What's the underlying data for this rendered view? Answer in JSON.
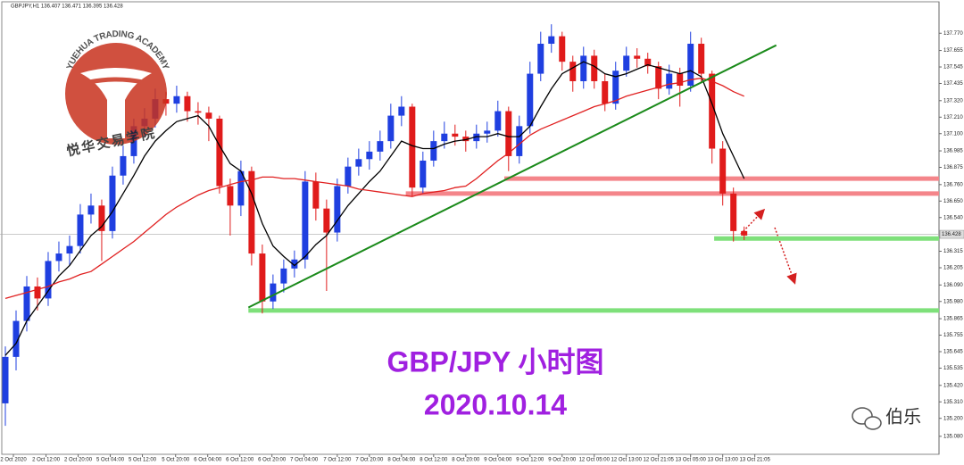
{
  "chart_data": {
    "type": "candlestick",
    "header": "GBPJPY,H1  136.407 136.471 136.395 136.428",
    "title": "GBP/JPY 小时图",
    "subtitle": "2020.10.14",
    "watermark": "YUEHUA TRADING ACADEMY",
    "watermark_cn": "悦华交易学院",
    "signature": "伯乐",
    "up_color": "#1f3fe0",
    "down_color": "#e01b1b",
    "xlim": [
      -0.5,
      87.2
    ],
    "ylim": [
      134.96,
      137.98
    ],
    "ohlc": [
      [
        135.3,
        135.68,
        135.15,
        135.61
      ],
      [
        135.61,
        135.92,
        135.52,
        135.85
      ],
      [
        135.85,
        136.15,
        135.78,
        136.08
      ],
      [
        136.08,
        136.14,
        135.92,
        136.0
      ],
      [
        136.0,
        136.31,
        135.95,
        136.25
      ],
      [
        136.25,
        136.38,
        136.18,
        136.3
      ],
      [
        136.3,
        136.42,
        136.22,
        136.35
      ],
      [
        136.35,
        136.63,
        136.3,
        136.56
      ],
      [
        136.56,
        136.7,
        136.5,
        136.62
      ],
      [
        136.62,
        136.66,
        136.25,
        136.45
      ],
      [
        136.45,
        136.88,
        136.4,
        136.82
      ],
      [
        136.82,
        137.02,
        136.76,
        136.95
      ],
      [
        136.95,
        137.2,
        136.9,
        137.15
      ],
      [
        137.15,
        137.27,
        137.08,
        137.2
      ],
      [
        137.2,
        137.4,
        137.14,
        137.33
      ],
      [
        137.33,
        137.38,
        137.22,
        137.3
      ],
      [
        137.3,
        137.42,
        137.24,
        137.35
      ],
      [
        137.35,
        137.38,
        137.18,
        137.25
      ],
      [
        137.25,
        137.31,
        137.16,
        137.24
      ],
      [
        137.24,
        137.28,
        137.05,
        137.2
      ],
      [
        137.2,
        137.22,
        136.7,
        136.75
      ],
      [
        136.75,
        136.8,
        136.42,
        136.62
      ],
      [
        136.62,
        136.92,
        136.55,
        136.85
      ],
      [
        136.85,
        136.88,
        136.22,
        136.3
      ],
      [
        136.3,
        136.36,
        135.9,
        135.98
      ],
      [
        135.98,
        136.16,
        135.93,
        136.1
      ],
      [
        136.1,
        136.26,
        136.04,
        136.2
      ],
      [
        136.2,
        136.32,
        136.14,
        136.26
      ],
      [
        136.26,
        136.85,
        136.2,
        136.78
      ],
      [
        136.78,
        136.84,
        136.52,
        136.6
      ],
      [
        136.6,
        136.66,
        136.05,
        136.44
      ],
      [
        136.44,
        136.8,
        136.38,
        136.75
      ],
      [
        136.75,
        136.94,
        136.7,
        136.88
      ],
      [
        136.88,
        137.0,
        136.82,
        136.93
      ],
      [
        136.93,
        137.05,
        136.86,
        136.98
      ],
      [
        136.98,
        137.12,
        136.92,
        137.05
      ],
      [
        137.05,
        137.3,
        137.0,
        137.22
      ],
      [
        137.22,
        137.35,
        137.15,
        137.28
      ],
      [
        137.28,
        137.3,
        136.68,
        136.74
      ],
      [
        136.74,
        136.98,
        136.7,
        136.92
      ],
      [
        136.92,
        137.12,
        136.88,
        137.05
      ],
      [
        137.05,
        137.18,
        137.0,
        137.1
      ],
      [
        137.1,
        137.16,
        137.02,
        137.08
      ],
      [
        137.08,
        137.12,
        136.98,
        137.05
      ],
      [
        137.05,
        137.16,
        137.0,
        137.1
      ],
      [
        137.1,
        137.18,
        137.04,
        137.12
      ],
      [
        137.12,
        137.32,
        137.08,
        137.25
      ],
      [
        137.25,
        137.28,
        136.85,
        136.95
      ],
      [
        136.95,
        137.22,
        136.9,
        137.15
      ],
      [
        137.15,
        137.58,
        137.1,
        137.5
      ],
      [
        137.5,
        137.78,
        137.45,
        137.7
      ],
      [
        137.7,
        137.83,
        137.64,
        137.75
      ],
      [
        137.75,
        137.78,
        137.52,
        137.58
      ],
      [
        137.58,
        137.62,
        137.38,
        137.45
      ],
      [
        137.45,
        137.68,
        137.4,
        137.62
      ],
      [
        137.62,
        137.66,
        137.4,
        137.45
      ],
      [
        137.45,
        137.5,
        137.25,
        137.3
      ],
      [
        137.3,
        137.58,
        137.26,
        137.52
      ],
      [
        137.52,
        137.68,
        137.48,
        137.62
      ],
      [
        137.62,
        137.67,
        137.54,
        137.6
      ],
      [
        137.6,
        137.64,
        137.5,
        137.55
      ],
      [
        137.55,
        137.58,
        137.33,
        137.4
      ],
      [
        137.4,
        137.56,
        137.36,
        137.5
      ],
      [
        137.5,
        137.54,
        137.28,
        137.42
      ],
      [
        137.42,
        137.78,
        137.38,
        137.7
      ],
      [
        137.7,
        137.74,
        137.44,
        137.5
      ],
      [
        137.5,
        137.52,
        136.9,
        137.0
      ],
      [
        137.0,
        137.05,
        136.62,
        136.7
      ],
      [
        136.7,
        136.74,
        136.38,
        136.45
      ],
      [
        136.45,
        136.48,
        136.39,
        136.42
      ]
    ],
    "series": [
      {
        "color": "#000000",
        "values": [
          135.62,
          135.7,
          135.85,
          135.95,
          136.05,
          136.15,
          136.22,
          136.32,
          136.42,
          136.48,
          136.58,
          136.7,
          136.82,
          136.95,
          137.05,
          137.12,
          137.18,
          137.2,
          137.22,
          137.15,
          137.02,
          136.9,
          136.85,
          136.7,
          136.5,
          136.35,
          136.28,
          136.22,
          136.28,
          136.36,
          136.42,
          136.52,
          136.62,
          136.7,
          136.78,
          136.85,
          136.95,
          137.05,
          137.02,
          137.0,
          137.0,
          137.03,
          137.05,
          137.06,
          137.08,
          137.08,
          137.1,
          137.08,
          137.08,
          137.15,
          137.28,
          137.4,
          137.5,
          137.54,
          137.58,
          137.55,
          137.5,
          137.48,
          137.5,
          137.53,
          137.56,
          137.54,
          137.52,
          137.5,
          137.52,
          137.48,
          137.3,
          137.1,
          136.95,
          136.8
        ]
      },
      {
        "color": "#e02020",
        "values": [
          136.0,
          136.02,
          136.04,
          136.06,
          136.08,
          136.11,
          136.13,
          136.16,
          136.18,
          136.23,
          136.28,
          136.33,
          136.38,
          136.44,
          136.5,
          136.56,
          136.61,
          136.65,
          136.69,
          136.72,
          136.74,
          136.76,
          136.78,
          136.79,
          136.81,
          136.81,
          136.8,
          136.8,
          136.79,
          136.78,
          136.77,
          136.76,
          136.75,
          136.73,
          136.72,
          136.71,
          136.7,
          136.69,
          136.68,
          136.7,
          136.71,
          136.72,
          136.74,
          136.75,
          136.8,
          136.86,
          136.92,
          136.97,
          137.03,
          137.09,
          137.13,
          137.16,
          137.19,
          137.22,
          137.25,
          137.28,
          137.3,
          137.32,
          137.35,
          137.37,
          137.39,
          137.41,
          137.43,
          137.44,
          137.46,
          137.47,
          137.45,
          137.42,
          137.38,
          137.35
        ]
      }
    ],
    "levels": [
      {
        "value": 136.8,
        "from": 46.6,
        "color": "#f4858a"
      },
      {
        "value": 136.7,
        "from": 37.4,
        "color": "#f4858a"
      },
      {
        "value": 136.4,
        "from": 66.2,
        "color": "#7ee07a"
      },
      {
        "value": 135.92,
        "from": 22.7,
        "color": "#7ee07a"
      }
    ],
    "trendline": {
      "from": [
        22.7,
        135.94
      ],
      "to": [
        72,
        137.69
      ],
      "color": "#1a8a1a"
    },
    "last_price": {
      "value": 136.428,
      "label": "136.428"
    },
    "yticks": [
      {
        "value": 137.77,
        "label": "137.770"
      },
      {
        "value": 137.655,
        "label": "137.655"
      },
      {
        "value": 137.545,
        "label": "137.545"
      },
      {
        "value": 137.435,
        "label": "137.435"
      },
      {
        "value": 137.32,
        "label": "137.320"
      },
      {
        "value": 137.21,
        "label": "137.210"
      },
      {
        "value": 137.1,
        "label": "137.100"
      },
      {
        "value": 136.985,
        "label": "136.985"
      },
      {
        "value": 136.875,
        "label": "136.875"
      },
      {
        "value": 136.76,
        "label": "136.760"
      },
      {
        "value": 136.65,
        "label": "136.650"
      },
      {
        "value": 136.54,
        "label": "136.540"
      },
      {
        "value": 136.315,
        "label": "136.315"
      },
      {
        "value": 136.205,
        "label": "136.205"
      },
      {
        "value": 136.09,
        "label": "136.090"
      },
      {
        "value": 135.98,
        "label": "135.980"
      },
      {
        "value": 135.865,
        "label": "135.865"
      },
      {
        "value": 135.755,
        "label": "135.755"
      },
      {
        "value": 135.645,
        "label": "135.645"
      },
      {
        "value": 135.535,
        "label": "135.535"
      },
      {
        "value": 135.42,
        "label": "135.420"
      },
      {
        "value": 135.31,
        "label": "135.310"
      },
      {
        "value": 135.2,
        "label": "135.200"
      },
      {
        "value": 135.08,
        "label": "135.080"
      }
    ],
    "xticks": [
      {
        "value": 0.75,
        "label": "2 Oct 2020"
      },
      {
        "value": 3.8,
        "label": "2 Oct 12:00"
      },
      {
        "value": 6.8,
        "label": "2 Oct 20:00"
      },
      {
        "value": 9.8,
        "label": "5 Oct 04:00"
      },
      {
        "value": 12.8,
        "label": "5 Oct 12:00"
      },
      {
        "value": 15.9,
        "label": "5 Oct 20:00"
      },
      {
        "value": 18.9,
        "label": "6 Oct 04:00"
      },
      {
        "value": 21.9,
        "label": "6 Oct 12:00"
      },
      {
        "value": 24.9,
        "label": "6 Oct 20:00"
      },
      {
        "value": 27.9,
        "label": "7 Oct 04:00"
      },
      {
        "value": 31,
        "label": "7 Oct 12:00"
      },
      {
        "value": 34,
        "label": "7 Oct 20:00"
      },
      {
        "value": 37,
        "label": "8 Oct 04:00"
      },
      {
        "value": 40,
        "label": "8 Oct 12:00"
      },
      {
        "value": 43,
        "label": "8 Oct 20:00"
      },
      {
        "value": 46,
        "label": "9 Oct 04:00"
      },
      {
        "value": 49,
        "label": "9 Oct 12:00"
      },
      {
        "value": 52,
        "label": "9 Oct 20:00"
      },
      {
        "value": 55,
        "label": "12 Oct 05:00"
      },
      {
        "value": 58,
        "label": "12 Oct 13:00"
      },
      {
        "value": 61,
        "label": "12 Oct 21:05"
      },
      {
        "value": 64,
        "label": "13 Oct 05:00"
      },
      {
        "value": 67,
        "label": "13 Oct 13:00"
      },
      {
        "value": 70,
        "label": "13 Oct 21:05"
      }
    ]
  }
}
